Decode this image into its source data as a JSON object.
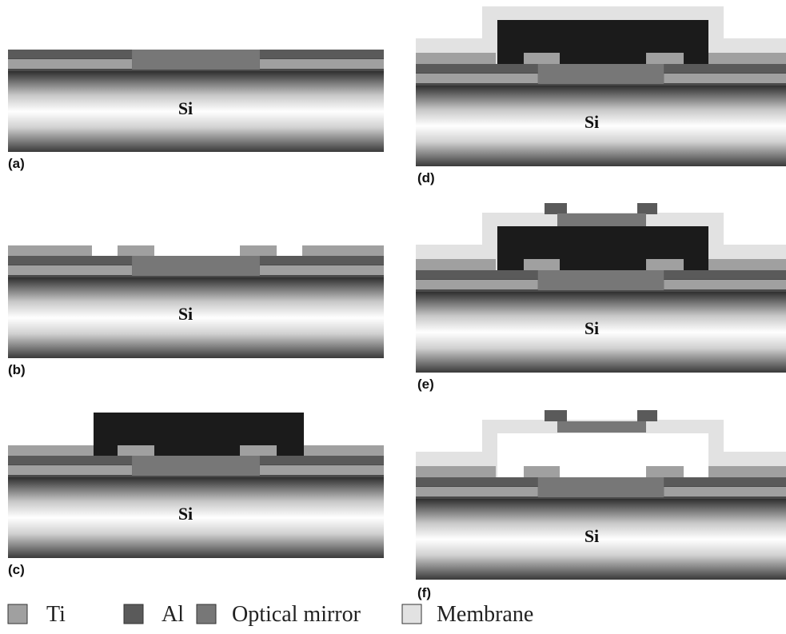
{
  "panels": [
    {
      "label": "(a)",
      "substrate": "Si"
    },
    {
      "label": "(b)",
      "substrate": "Si"
    },
    {
      "label": "(c)",
      "substrate": "Si"
    },
    {
      "label": "(d)",
      "substrate": "Si"
    },
    {
      "label": "(e)",
      "substrate": "Si"
    },
    {
      "label": "(f)",
      "substrate": "Si"
    }
  ],
  "legend": [
    {
      "label": "Ti"
    },
    {
      "label": "Al"
    },
    {
      "label": "Optical mirror"
    },
    {
      "label": "Membrane"
    }
  ]
}
